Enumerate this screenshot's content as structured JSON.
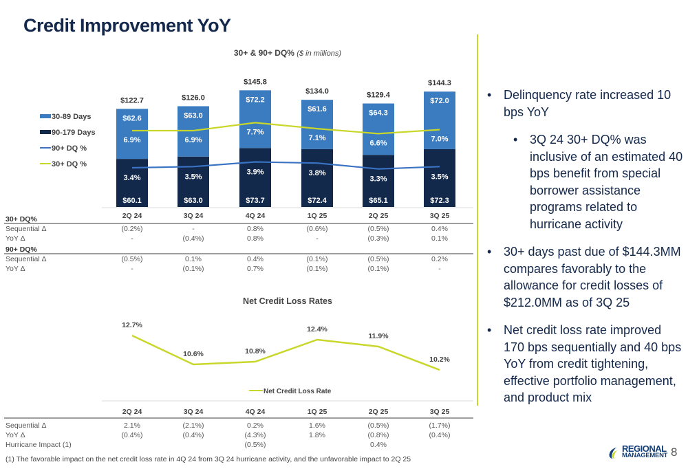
{
  "page": {
    "title": "Credit Improvement YoY",
    "page_number": "8",
    "footnote": "(1) The favorable impact on the net credit loss rate in 4Q 24 from 3Q 24 hurricane activity, and the unfavorable impact to 2Q 25",
    "logo": {
      "line1": "REGIONAL",
      "line2": "MANAGEMENT"
    }
  },
  "colors": {
    "navy": "#13294b",
    "blue": "#3b7bbf",
    "line_blue": "#3a73c4",
    "yellow_green": "#c9d72b",
    "title": "#14284b"
  },
  "bullets": [
    {
      "level": 1,
      "text": "Delinquency rate increased 10 bps YoY"
    },
    {
      "level": 2,
      "text": "3Q 24 30+ DQ% was inclusive of an estimated 40 bps benefit from special borrower assistance programs related to hurricane activity"
    },
    {
      "level": 1,
      "text": "30+ days past due of $144.3MM compares favorably to the allowance for credit losses of $212.0MM as of 3Q 25"
    },
    {
      "level": 1,
      "text": "Net credit loss rate improved 170 bps sequentially and 40 bps YoY from credit tightening, effective portfolio management, and product mix"
    }
  ],
  "chart_data": [
    {
      "type": "bar",
      "stacked": true,
      "title": "30+ & 90+ DQ%",
      "subtitle": "($ in millions)",
      "categories": [
        "2Q 24",
        "3Q 24",
        "4Q 24",
        "1Q 25",
        "2Q 25",
        "3Q 25"
      ],
      "series": [
        {
          "name": "90-179 Days",
          "type": "bar",
          "values": [
            60.1,
            63.0,
            73.7,
            72.4,
            65.1,
            72.3
          ],
          "labels": [
            "$60.1",
            "$63.0",
            "$73.7",
            "$72.4",
            "$65.1",
            "$72.3"
          ]
        },
        {
          "name": "30-89 Days",
          "type": "bar",
          "values": [
            62.6,
            63.0,
            72.2,
            61.6,
            64.3,
            72.0
          ],
          "labels": [
            "$62.6",
            "$63.0",
            "$72.2",
            "$61.6",
            "$64.3",
            "$72.0"
          ]
        },
        {
          "name": "90+ DQ %",
          "type": "line",
          "values": [
            3.4,
            3.5,
            3.9,
            3.8,
            3.3,
            3.5
          ],
          "labels": [
            "3.4%",
            "3.5%",
            "3.9%",
            "3.8%",
            "3.3%",
            "3.5%"
          ]
        },
        {
          "name": "30+ DQ %",
          "type": "line",
          "values": [
            6.9,
            6.9,
            7.7,
            7.1,
            6.6,
            7.0
          ],
          "labels": [
            "6.9%",
            "6.9%",
            "7.7%",
            "7.1%",
            "6.6%",
            "7.0%"
          ]
        }
      ],
      "totals": [
        122.7,
        126.0,
        145.8,
        134.0,
        129.4,
        144.3
      ],
      "total_labels": [
        "$122.7",
        "$126.0",
        "$145.8",
        "$134.0",
        "$129.4",
        "$144.3"
      ],
      "legend": [
        "30-89 Days",
        "90-179 Days",
        "90+ DQ %",
        "30+ DQ %"
      ],
      "legend_position": "left",
      "ylim": [
        0,
        150
      ]
    },
    {
      "type": "table",
      "title": "30+ / 90+ DQ% change",
      "columns": [
        "2Q 24",
        "3Q 24",
        "4Q 24",
        "1Q 25",
        "2Q 25",
        "3Q 25"
      ],
      "sections": [
        {
          "header": "30+ DQ%",
          "rows": [
            {
              "label": "Sequential Δ",
              "values": [
                "(0.2%)",
                "-",
                "0.8%",
                "(0.6%)",
                "(0.5%)",
                "0.4%"
              ]
            },
            {
              "label": "YoY Δ",
              "values": [
                "-",
                "(0.4%)",
                "0.8%",
                "-",
                "(0.3%)",
                "0.1%"
              ]
            }
          ]
        },
        {
          "header": "90+ DQ%",
          "rows": [
            {
              "label": "Sequential Δ",
              "values": [
                "(0.5%)",
                "0.1%",
                "0.4%",
                "(0.1%)",
                "(0.5%)",
                "0.2%"
              ]
            },
            {
              "label": "YoY Δ",
              "values": [
                "-",
                "(0.1%)",
                "0.7%",
                "(0.1%)",
                "(0.1%)",
                "-"
              ]
            }
          ]
        }
      ]
    },
    {
      "type": "line",
      "title": "Net Credit Loss Rates",
      "categories": [
        "2Q 24",
        "3Q 24",
        "4Q 24",
        "1Q 25",
        "2Q 25",
        "3Q 25"
      ],
      "series": [
        {
          "name": "Net Credit Loss Rate",
          "values": [
            12.7,
            10.6,
            10.8,
            12.4,
            11.9,
            10.2
          ],
          "labels": [
            "12.7%",
            "10.6%",
            "10.8%",
            "12.4%",
            "11.9%",
            "10.2%"
          ]
        }
      ],
      "legend_position": "bottom",
      "ylim": [
        9.5,
        13.2
      ]
    },
    {
      "type": "table",
      "title": "Net credit loss rate change",
      "columns": [
        "2Q 24",
        "3Q 24",
        "4Q 24",
        "1Q 25",
        "2Q 25",
        "3Q 25"
      ],
      "rows": [
        {
          "label": "Sequential Δ",
          "values": [
            "2.1%",
            "(2.1%)",
            "0.2%",
            "1.6%",
            "(0.5%)",
            "(1.7%)"
          ]
        },
        {
          "label": "YoY Δ",
          "values": [
            "(0.4%)",
            "(0.4%)",
            "(4.3%)",
            "1.8%",
            "(0.8%)",
            "(0.4%)"
          ]
        },
        {
          "label": "Hurricane Impact (1)",
          "values": [
            "",
            "",
            "(0.5%)",
            "",
            "0.4%",
            ""
          ]
        }
      ]
    }
  ]
}
